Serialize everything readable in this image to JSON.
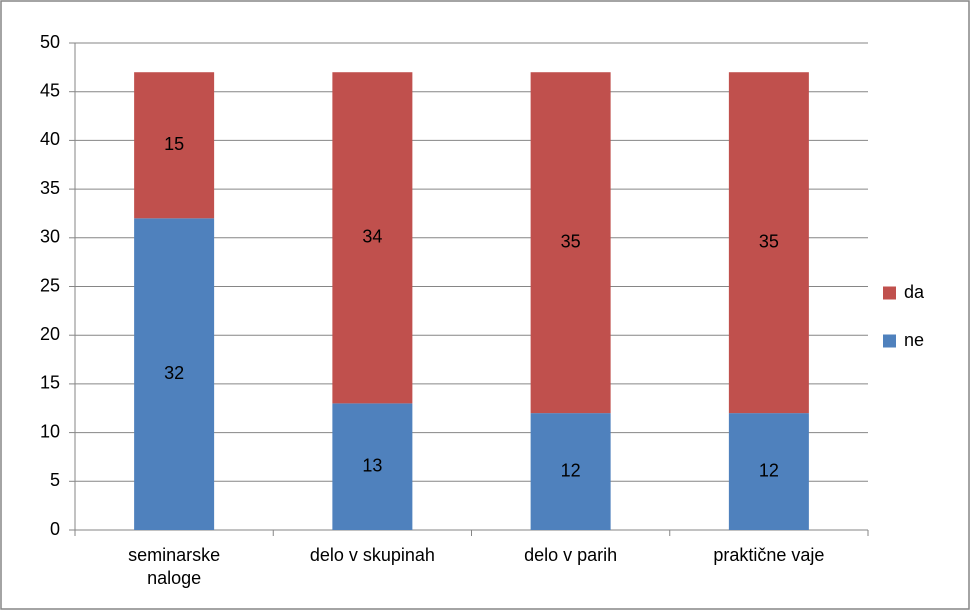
{
  "chart_data": {
    "type": "stacked_bar",
    "categories": [
      "seminarske\nnaloge",
      "delo v skupinah",
      "delo v parih",
      "praktične vaje"
    ],
    "series": [
      {
        "name": "ne",
        "color": "#4f81bd",
        "values": [
          32,
          13,
          12,
          12
        ]
      },
      {
        "name": "da",
        "color": "#c0504d",
        "values": [
          15,
          34,
          35,
          35
        ]
      }
    ],
    "ylim": [
      0,
      50
    ],
    "yticks": [
      0,
      5,
      10,
      15,
      20,
      25,
      30,
      35,
      40,
      45,
      50
    ],
    "grid": true,
    "legend": "right"
  }
}
